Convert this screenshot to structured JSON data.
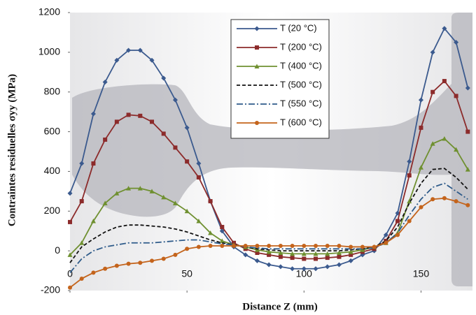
{
  "chart_data": {
    "type": "line",
    "x_label": "Distance Z  (mm)",
    "y_label": "Contraintes residuelles σyy (MPa)",
    "xlim": [
      0,
      172
    ],
    "ylim": [
      -200,
      1200
    ],
    "xticks": [
      0,
      50,
      100,
      150
    ],
    "yticks": [
      -200,
      0,
      200,
      400,
      600,
      800,
      1000,
      1200
    ],
    "x": [
      0,
      5,
      10,
      15,
      20,
      25,
      30,
      35,
      40,
      45,
      50,
      55,
      60,
      65,
      70,
      75,
      80,
      85,
      90,
      95,
      100,
      105,
      110,
      115,
      120,
      125,
      130,
      135,
      140,
      145,
      150,
      155,
      160,
      165,
      170
    ],
    "series": [
      {
        "name": "T (20 °C)",
        "color": "#3b5a8e",
        "marker": "diamond",
        "dash": "solid",
        "values": [
          290,
          440,
          690,
          850,
          960,
          1010,
          1010,
          960,
          870,
          760,
          620,
          440,
          250,
          100,
          20,
          -20,
          -50,
          -70,
          -80,
          -90,
          -90,
          -90,
          -80,
          -70,
          -50,
          -20,
          0,
          80,
          190,
          450,
          760,
          1000,
          1120,
          1050,
          820
        ]
      },
      {
        "name": "T (200 °C)",
        "color": "#8c2b2b",
        "marker": "square",
        "dash": "solid",
        "values": [
          145,
          250,
          440,
          560,
          650,
          685,
          680,
          650,
          590,
          520,
          450,
          370,
          250,
          120,
          40,
          10,
          -10,
          -20,
          -30,
          -35,
          -40,
          -40,
          -35,
          -30,
          -20,
          -5,
          10,
          50,
          150,
          380,
          620,
          800,
          855,
          780,
          600
        ]
      },
      {
        "name": "T (400 °C)",
        "color": "#6f9030",
        "marker": "triangle",
        "dash": "solid",
        "values": [
          -20,
          40,
          150,
          240,
          290,
          315,
          315,
          300,
          270,
          240,
          200,
          150,
          90,
          50,
          30,
          20,
          5,
          -5,
          -10,
          -15,
          -15,
          -15,
          -15,
          -10,
          -5,
          5,
          20,
          40,
          90,
          250,
          420,
          540,
          565,
          510,
          410
        ]
      },
      {
        "name": "T (500 °C)",
        "color": "#111111",
        "marker": "none",
        "dash": "dashed",
        "values": [
          -60,
          20,
          60,
          95,
          120,
          130,
          130,
          125,
          120,
          110,
          95,
          75,
          55,
          40,
          30,
          20,
          10,
          5,
          0,
          0,
          0,
          0,
          0,
          0,
          5,
          10,
          20,
          50,
          120,
          240,
          340,
          410,
          415,
          370,
          310
        ]
      },
      {
        "name": "T (550 °C)",
        "color": "#2e5b8a",
        "marker": "none",
        "dash": "dashdot",
        "values": [
          -110,
          -40,
          0,
          20,
          30,
          40,
          40,
          40,
          45,
          50,
          55,
          55,
          45,
          35,
          30,
          20,
          15,
          10,
          10,
          10,
          10,
          10,
          10,
          10,
          10,
          10,
          15,
          40,
          90,
          180,
          260,
          320,
          340,
          300,
          260
        ]
      },
      {
        "name": "T (600 °C)",
        "color": "#c4641c",
        "marker": "circle",
        "dash": "solid",
        "values": [
          -185,
          -140,
          -110,
          -90,
          -75,
          -65,
          -60,
          -50,
          -40,
          -20,
          10,
          20,
          25,
          25,
          25,
          25,
          25,
          25,
          25,
          25,
          25,
          25,
          25,
          25,
          20,
          20,
          20,
          40,
          80,
          150,
          220,
          260,
          265,
          250,
          230
        ]
      }
    ]
  }
}
